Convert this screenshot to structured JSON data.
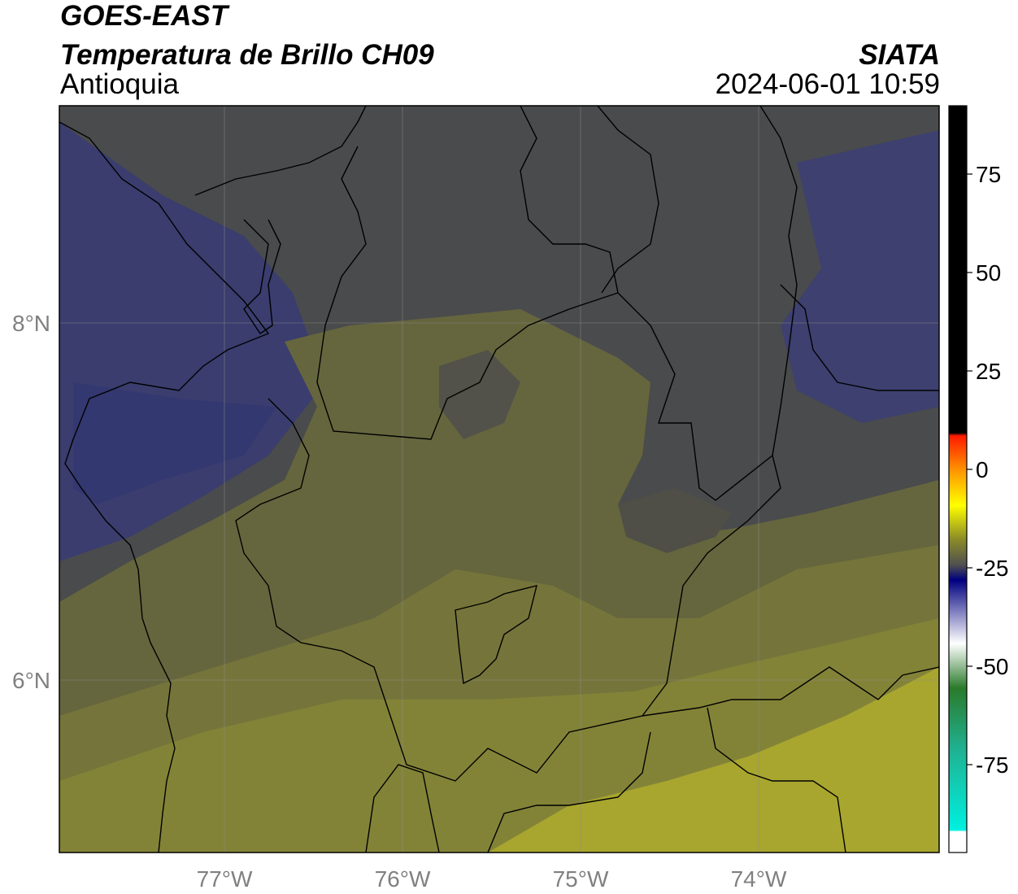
{
  "header": {
    "satellite": "GOES-EAST",
    "product": "Temperatura de Brillo CH09",
    "region": "Antioquia",
    "organization": "SIATA",
    "datetime": "2024-06-01 10:59"
  },
  "map": {
    "lon_labels": [
      "77°W",
      "76°W",
      "75°W",
      "74°W"
    ],
    "lat_labels": [
      "8°N",
      "6°N"
    ],
    "colors": {
      "cold_blue": "#3a3d6e",
      "dark_gray": "#4a4b4c",
      "olive": "#66663e",
      "olive_light": "#7d7d3a",
      "yellow": "#a8a62e",
      "border": "#000000",
      "grid": "#8c8c8c"
    }
  },
  "colorbar": {
    "ticks": [
      "75",
      "50",
      "25",
      "0",
      "-25",
      "-50",
      "-75"
    ],
    "colors": {
      "black": "#000000",
      "red": "#ff1a00",
      "orange": "#ff9900",
      "yellow": "#ffff00",
      "olive": "#8c8c28",
      "gray": "#505050",
      "navy": "#000080",
      "white": "#ffffff",
      "green": "#2a7a2a",
      "cyan": "#00f0e0"
    }
  }
}
